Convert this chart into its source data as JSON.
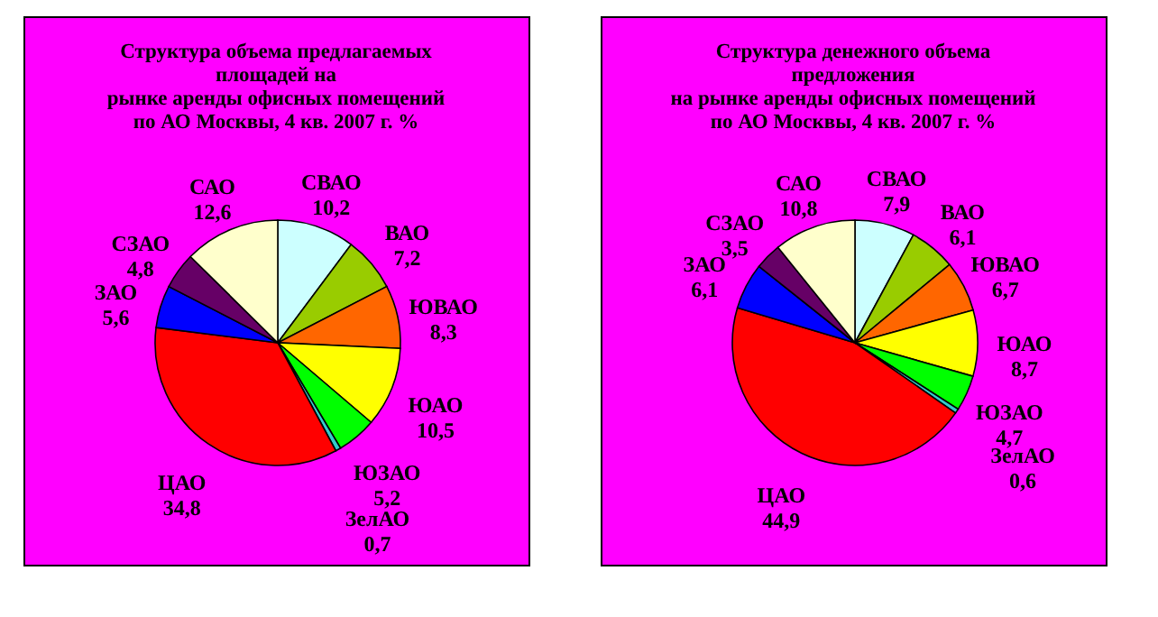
{
  "chart_data": [
    {
      "type": "pie",
      "title": "Структура  объема предлагаемых\nплощадей на\nрынке аренды офисных помещений\nпо АО Москвы, 4 кв. 2007 г. %",
      "categories": [
        "СВАО",
        "ВАО",
        "ЮВАО",
        "ЮАО",
        "ЮЗАО",
        "ЗелАО",
        "ЦАО",
        "ЗАО",
        "СЗАО",
        "САО"
      ],
      "values": [
        10.2,
        7.2,
        8.3,
        10.5,
        5.2,
        0.7,
        34.8,
        5.6,
        4.8,
        12.6
      ],
      "value_labels": [
        "10,2",
        "7,2",
        "8,3",
        "10,5",
        "5,2",
        "0,7",
        "34,8",
        "5,6",
        "4,8",
        "12,6"
      ],
      "colors": [
        "#ccffff",
        "#99cc00",
        "#ff6600",
        "#ffff00",
        "#00ff00",
        "#33cccc",
        "#ff0000",
        "#0000ff",
        "#660066",
        "#ffffcc"
      ],
      "legend": false
    },
    {
      "type": "pie",
      "title": "Структура  денежного объема\nпредложения\nна рынке аренды офисных помещений\nпо АО Москвы,  4 кв. 2007 г. %",
      "categories": [
        "СВАО",
        "ВАО",
        "ЮВАО",
        "ЮАО",
        "ЮЗАО",
        "ЗелАО",
        "ЦАО",
        "ЗАО",
        "СЗАО",
        "САО"
      ],
      "values": [
        7.9,
        6.1,
        6.7,
        8.7,
        4.7,
        0.6,
        44.9,
        6.1,
        3.5,
        10.8
      ],
      "value_labels": [
        "7,9",
        "6,1",
        "6,7",
        "8,7",
        "4,7",
        "0,6",
        "44,9",
        "6,1",
        "3,5",
        "10,8"
      ],
      "colors": [
        "#ccffff",
        "#99cc00",
        "#ff6600",
        "#ffff00",
        "#00ff00",
        "#33cccc",
        "#ff0000",
        "#0000ff",
        "#660066",
        "#ffffcc"
      ],
      "legend": false
    }
  ]
}
